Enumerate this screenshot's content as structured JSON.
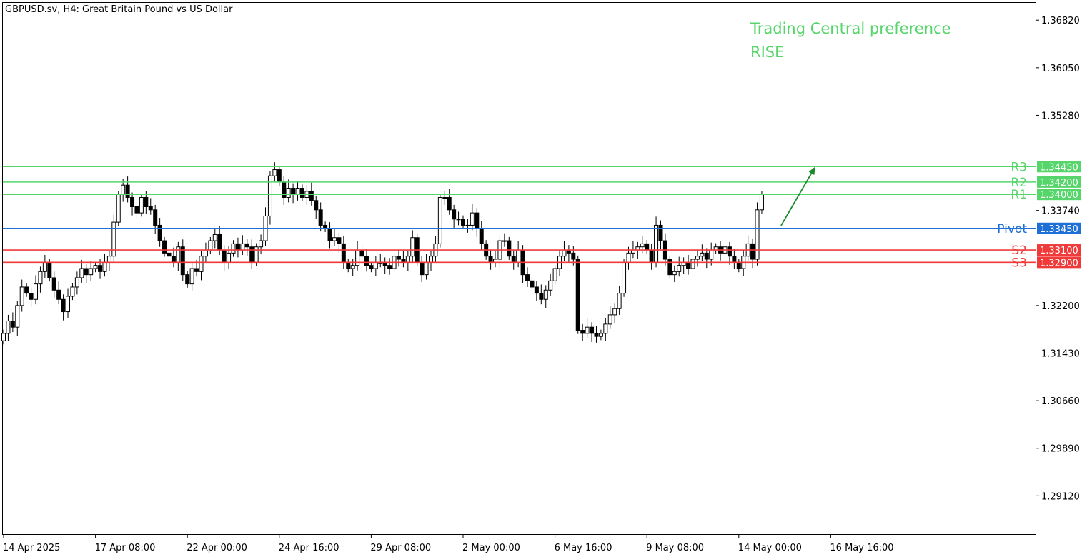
{
  "chart_data": {
    "type": "candlestick",
    "symbol_title": "GBPUSD.sv, H4:  Great Britain Pound vs US Dollar",
    "annotation": {
      "line1": "Trading Central preference",
      "line2": "RISE",
      "color": "#56d56a"
    },
    "arrow_color": "#1a8a2a",
    "ylim": [
      1.285,
      1.371
    ],
    "y_ticks": [
      {
        "label": "1.36820",
        "value": 1.3682
      },
      {
        "label": "1.36050",
        "value": 1.3605
      },
      {
        "label": "1.35280",
        "value": 1.3528
      },
      {
        "label": "1.33740",
        "value": 1.3374
      },
      {
        "label": "1.32200",
        "value": 1.322
      },
      {
        "label": "1.31430",
        "value": 1.3143
      },
      {
        "label": "1.30660",
        "value": 1.3066
      },
      {
        "label": "1.29890",
        "value": 1.2989
      },
      {
        "label": "1.29120",
        "value": 1.2912
      }
    ],
    "x_ticks": [
      {
        "label": "14 Apr 2025",
        "bar": 0
      },
      {
        "label": "17 Apr 08:00",
        "bar": 20
      },
      {
        "label": "22 Apr 00:00",
        "bar": 40
      },
      {
        "label": "24 Apr 16:00",
        "bar": 60
      },
      {
        "label": "29 Apr 08:00",
        "bar": 80
      },
      {
        "label": "2 May 00:00",
        "bar": 100
      },
      {
        "label": "6 May 16:00",
        "bar": 120
      },
      {
        "label": "9 May 08:00",
        "bar": 140
      },
      {
        "label": "14 May 00:00",
        "bar": 160
      },
      {
        "label": "16 May 16:00",
        "bar": 180
      }
    ],
    "levels": [
      {
        "name": "R3",
        "value": 1.3445,
        "label": "1.34450",
        "color": "#56d56a"
      },
      {
        "name": "R2",
        "value": 1.342,
        "label": "1.34200",
        "color": "#56d56a"
      },
      {
        "name": "R1",
        "value": 1.34,
        "label": "1.34000",
        "color": "#56d56a"
      },
      {
        "name": "Pivot",
        "value": 1.3345,
        "label": "1.33450",
        "color": "#1e6fd6"
      },
      {
        "name": "S2",
        "value": 1.331,
        "label": "1.33100",
        "color": "#f03a3a"
      },
      {
        "name": "S3",
        "value": 1.329,
        "label": "1.32900",
        "color": "#f03a3a"
      }
    ],
    "closes": [
      1.3175,
      1.3195,
      1.3185,
      1.322,
      1.325,
      1.324,
      1.323,
      1.3255,
      1.3275,
      1.329,
      1.3265,
      1.3245,
      1.323,
      1.321,
      1.3235,
      1.325,
      1.3265,
      1.328,
      1.327,
      1.328,
      1.3285,
      1.3275,
      1.329,
      1.33,
      1.3355,
      1.34,
      1.3415,
      1.3395,
      1.338,
      1.337,
      1.3395,
      1.338,
      1.3375,
      1.335,
      1.3325,
      1.3305,
      1.33,
      1.329,
      1.3315,
      1.327,
      1.3255,
      1.328,
      1.3275,
      1.33,
      1.331,
      1.3325,
      1.3335,
      1.331,
      1.329,
      1.3305,
      1.332,
      1.331,
      1.332,
      1.3315,
      1.329,
      1.3315,
      1.3325,
      1.3365,
      1.343,
      1.344,
      1.342,
      1.3395,
      1.341,
      1.34,
      1.341,
      1.3395,
      1.3405,
      1.339,
      1.3375,
      1.335,
      1.3345,
      1.3325,
      1.333,
      1.332,
      1.329,
      1.328,
      1.3285,
      1.331,
      1.33,
      1.3285,
      1.328,
      1.329,
      1.329,
      1.3285,
      1.328,
      1.33,
      1.3295,
      1.329,
      1.33,
      1.333,
      1.329,
      1.327,
      1.329,
      1.33,
      1.332,
      1.3395,
      1.3395,
      1.3375,
      1.336,
      1.336,
      1.335,
      1.335,
      1.337,
      1.3345,
      1.332,
      1.33,
      1.329,
      1.3295,
      1.3325,
      1.3325,
      1.33,
      1.329,
      1.331,
      1.327,
      1.326,
      1.325,
      1.324,
      1.323,
      1.3245,
      1.326,
      1.328,
      1.33,
      1.331,
      1.3305,
      1.3295,
      1.318,
      1.3175,
      1.3185,
      1.3175,
      1.317,
      1.3175,
      1.319,
      1.3205,
      1.3215,
      1.324,
      1.329,
      1.3305,
      1.331,
      1.3315,
      1.332,
      1.331,
      1.329,
      1.335,
      1.3325,
      1.3295,
      1.327,
      1.3275,
      1.3285,
      1.329,
      1.328,
      1.3295,
      1.33,
      1.3305,
      1.3295,
      1.331,
      1.3315,
      1.3305,
      1.3315,
      1.33,
      1.329,
      1.328,
      1.33,
      1.332,
      1.3295,
      1.3375,
      1.34
    ]
  }
}
